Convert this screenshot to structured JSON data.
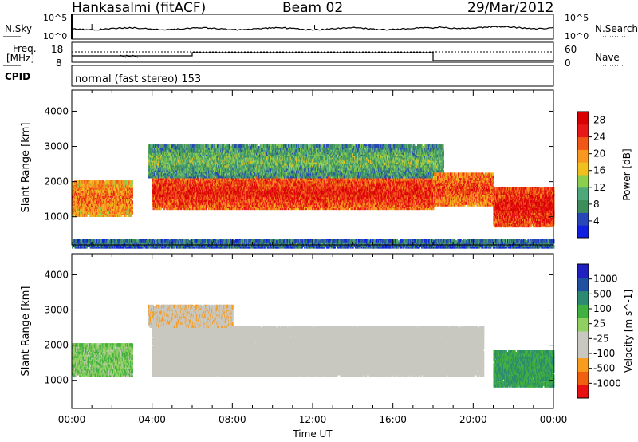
{
  "header": {
    "station": "Hankasalmi (fitACF)",
    "beam": "Beam 02",
    "date": "29/Mar/2012"
  },
  "panels": {
    "nsky": {
      "label": "N.Sky",
      "tick_top": "10^5",
      "tick_bottom": "10^0",
      "right_label": "N.Search",
      "right_tick_top": "10^5",
      "right_tick_bottom": "10^0"
    },
    "freq": {
      "label_line1": "Freq.",
      "label_line2": "[MHz]",
      "tick_top": "18",
      "tick_bottom": "8",
      "right_label": "Nave",
      "right_tick_top": "60",
      "right_tick_bottom": "0"
    },
    "cpid": {
      "label": "CPID",
      "text": "normal (fast stereo) 153"
    }
  },
  "colors": {
    "power": [
      "#1020e0",
      "#2848b8",
      "#3c8c5c",
      "#4ea87a",
      "#8ccf4e",
      "#f0c020",
      "#f89820",
      "#f05818",
      "#e81818",
      "#d80000"
    ],
    "velocity": [
      "#e81010",
      "#f06010",
      "#f89c20",
      "#c8c8c0",
      "#c8c8c0",
      "#90d060",
      "#40b040",
      "#2c8a70",
      "#2050a0",
      "#2020c0"
    ]
  },
  "chart_data": [
    {
      "type": "heatmap",
      "title": "Power",
      "ylabel": "Slant Range [km]",
      "xlabel": "Time UT",
      "x_ticks": [
        "00:00",
        "04:00",
        "08:00",
        "12:00",
        "16:00",
        "20:00",
        "00:00"
      ],
      "xlim_hours": [
        0,
        24
      ],
      "ylim": [
        200,
        4600
      ],
      "y_ticks": [
        1000,
        2000,
        3000,
        4000
      ],
      "colorbar": {
        "label": "Power [dB]",
        "ticks": [
          4,
          8,
          12,
          16,
          20,
          24,
          28
        ],
        "range": [
          0,
          30
        ]
      },
      "features": [
        {
          "name": "main echo band",
          "start_h": 4.0,
          "end_h": 18.0,
          "range_km": [
            1300,
            2200
          ],
          "power_db": 26
        },
        {
          "name": "upper scatter",
          "start_h": 3.8,
          "end_h": 18.5,
          "range_km": [
            2200,
            3100
          ],
          "power_db": 12
        },
        {
          "name": "early echoes",
          "start_h": 0.0,
          "end_h": 3.0,
          "range_km": [
            1100,
            2100
          ],
          "power_db": 22
        },
        {
          "name": "evening band",
          "start_h": 18.0,
          "end_h": 21.0,
          "range_km": [
            1400,
            2300
          ],
          "power_db": 24
        },
        {
          "name": "late night echoes",
          "start_h": 21.0,
          "end_h": 24.0,
          "range_km": [
            800,
            1900
          ],
          "power_db": 27
        },
        {
          "name": "ground noise",
          "start_h": 0.0,
          "end_h": 24.0,
          "range_km": [
            200,
            420
          ],
          "power_db": 8
        }
      ]
    },
    {
      "type": "heatmap",
      "title": "Velocity",
      "ylabel": "Slant Range [km]",
      "xlabel": "Time UT",
      "x_ticks": [
        "00:00",
        "04:00",
        "08:00",
        "12:00",
        "16:00",
        "20:00",
        "00:00"
      ],
      "xlim_hours": [
        0,
        24
      ],
      "ylim": [
        200,
        4600
      ],
      "y_ticks": [
        1000,
        2000,
        3000,
        4000
      ],
      "colorbar": {
        "label": "Velocity [m s^-1]",
        "ticks": [
          1000,
          500,
          100,
          25,
          -25,
          -100,
          -500,
          -1000
        ]
      },
      "features": [
        {
          "name": "ground scatter band",
          "start_h": 4.0,
          "end_h": 20.5,
          "range_km": [
            1200,
            2600
          ],
          "velocity": 0
        },
        {
          "name": "upper flow",
          "start_h": 3.8,
          "end_h": 8.0,
          "range_km": [
            2600,
            3200
          ],
          "velocity": -300
        },
        {
          "name": "early flow",
          "start_h": 0.0,
          "end_h": 3.0,
          "range_km": [
            1200,
            2100
          ],
          "velocity": 150
        },
        {
          "name": "late flow",
          "start_h": 21.0,
          "end_h": 24.0,
          "range_km": [
            900,
            1900
          ],
          "velocity": 400
        }
      ]
    }
  ]
}
